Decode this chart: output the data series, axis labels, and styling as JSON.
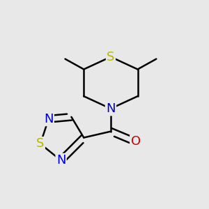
{
  "bg_color": "#e8e8e8",
  "bond_color": "#000000",
  "S_color": "#b8b800",
  "N_color": "#0000cc",
  "O_color": "#cc0000",
  "line_width": 1.8,
  "font_size": 12,
  "figsize": [
    3.0,
    3.0
  ],
  "dpi": 100,
  "xlim": [
    0.0,
    1.0
  ],
  "ylim": [
    0.0,
    1.0
  ]
}
